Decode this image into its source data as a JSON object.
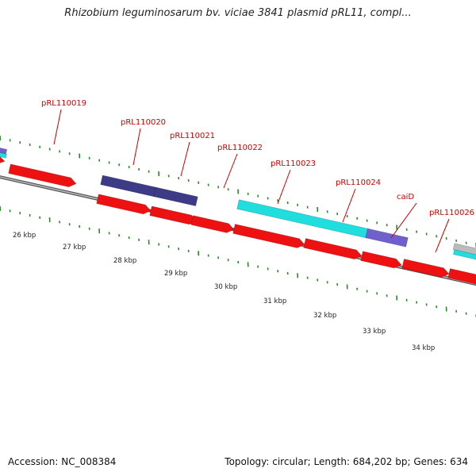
{
  "title": "Rhizobium leguminosarum bv. viciae 3841 plasmid pRL11, compl...",
  "footer": {
    "accession": "Accession: NC_008384",
    "topology": "Topology: circular; Length: 684,202 bp; Genes: 634"
  },
  "kbp_labels": [
    "26 kbp",
    "27 kbp",
    "28 kbp",
    "29 kbp",
    "30 kbp",
    "31 kbp",
    "32 kbp",
    "33 kbp",
    "34 kbp"
  ],
  "gene_labels": [
    "pRL110019",
    "pRL110020",
    "pRL110021",
    "pRL110022",
    "pRL110023",
    "pRL110024",
    "caiD",
    "pRL110026"
  ],
  "colors": {
    "cds_red": "#ee1111",
    "dark_purple": "#3d3a86",
    "light_purple": "#7060cc",
    "cyan": "#20dede",
    "label_red": "#cc0000",
    "tick_green": "#2a8a2a",
    "backbone_gray": "#8a8a8a"
  }
}
